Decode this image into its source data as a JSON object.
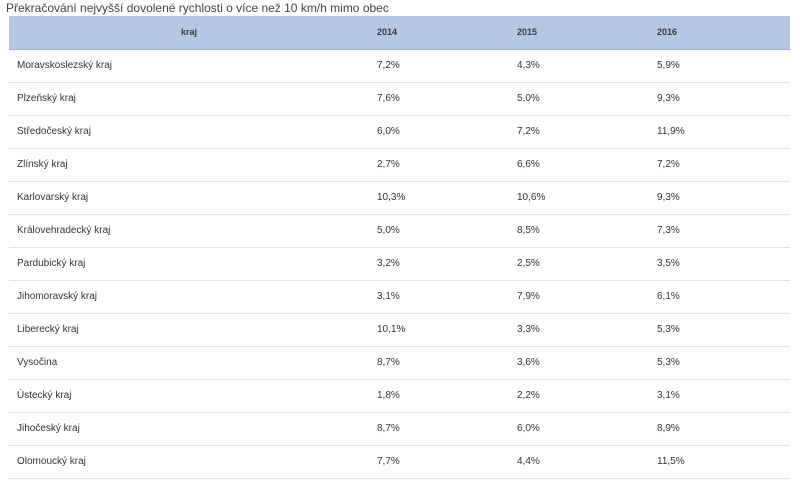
{
  "title": "Překračování nejvyšší dovolené rychlosti o více než 10 km/h mimo obec",
  "chart_data": {
    "type": "table",
    "title": "Překračování nejvyšší dovolené rychlosti o více než 10 km/h mimo obec",
    "columns": [
      "kraj",
      "2014",
      "2015",
      "2016"
    ],
    "rows": [
      [
        "Moravskoslezský kraj",
        "7,2%",
        "4,3%",
        "5,9%"
      ],
      [
        "Plzeňský kraj",
        "7,6%",
        "5,0%",
        "9,3%"
      ],
      [
        "Středočeský kraj",
        "6,0%",
        "7,2%",
        "11,9%"
      ],
      [
        "Zlínský kraj",
        "2,7%",
        "6,6%",
        "7,2%"
      ],
      [
        "Karlovarský kraj",
        "10,3%",
        "10,6%",
        "9,3%"
      ],
      [
        "Královehradecký kraj",
        "5,0%",
        "8,5%",
        "7,3%"
      ],
      [
        "Pardubický kraj",
        "3,2%",
        "2,5%",
        "3,5%"
      ],
      [
        "Jihomoravský kraj",
        "3,1%",
        "7,9%",
        "6,1%"
      ],
      [
        "Liberecký kraj",
        "10,1%",
        "3,3%",
        "5,3%"
      ],
      [
        "Vysočina",
        "8,7%",
        "3,6%",
        "5,3%"
      ],
      [
        "Ústecký kraj",
        "1,8%",
        "2,2%",
        "3,1%"
      ],
      [
        "Jihočeský kraj",
        "8,7%",
        "6,0%",
        "8,9%"
      ],
      [
        "Olomoucký kraj",
        "7,7%",
        "4,4%",
        "11,5%"
      ]
    ],
    "series": [
      {
        "name": "2014",
        "values": [
          7.2,
          7.6,
          6.0,
          2.7,
          10.3,
          5.0,
          3.2,
          3.1,
          10.1,
          8.7,
          1.8,
          8.7,
          7.7
        ]
      },
      {
        "name": "2015",
        "values": [
          4.3,
          5.0,
          7.2,
          6.6,
          10.6,
          8.5,
          2.5,
          7.9,
          3.3,
          3.6,
          2.2,
          6.0,
          4.4
        ]
      },
      {
        "name": "2016",
        "values": [
          5.9,
          9.3,
          11.9,
          7.2,
          9.3,
          7.3,
          3.5,
          6.1,
          5.3,
          5.3,
          3.1,
          8.9,
          11.5
        ]
      }
    ]
  },
  "colors": {
    "header_bg": "#b5c8e3",
    "row_divider": "#e2e2e2"
  }
}
